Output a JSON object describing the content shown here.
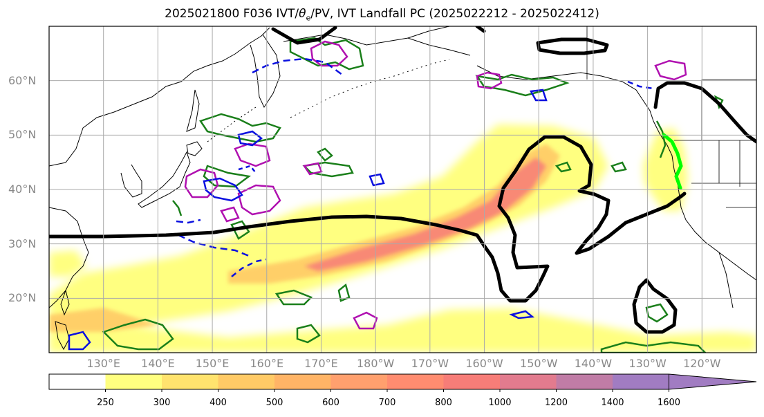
{
  "title": {
    "prefix": "2025021800 F036 IVT/",
    "theta": "θ",
    "theta_sub": "e",
    "suffix": "/PV, IVT Landfall PC (2025022212 - 2025022412)"
  },
  "map": {
    "lat_labels": [
      "60°N",
      "50°N",
      "40°N",
      "30°N",
      "20°N"
    ],
    "lon_labels": [
      "130°E",
      "140°E",
      "150°E",
      "160°E",
      "170°E",
      "180°W",
      "170°W",
      "160°W",
      "150°W",
      "140°W",
      "130°W",
      "120°W"
    ],
    "lat_range": [
      10,
      70
    ],
    "lon_range": [
      120,
      250
    ]
  },
  "colorbar": {
    "ticks": [
      "250",
      "300",
      "400",
      "500",
      "600",
      "700",
      "800",
      "1000",
      "1200",
      "1400",
      "1600"
    ],
    "colors": [
      "#ffffff",
      "#ffff80",
      "#ffe36e",
      "#ffca66",
      "#ffb466",
      "#ffa06e",
      "#ff8c70",
      "#f77d78",
      "#e27b8e",
      "#c07ca6",
      "#a17cc2"
    ],
    "extend": "max"
  },
  "colors": {
    "ivt_light": "#ffff80",
    "ivt_mid": "#ffca66",
    "ivt_core": "#f77d78",
    "contour_black": "#000000",
    "green": "#1a7f1a",
    "magenta": "#b010b0",
    "blue": "#0a10e0",
    "lime": "#00ff00",
    "grid": "#aaaaaa",
    "label_grey": "#888888"
  }
}
